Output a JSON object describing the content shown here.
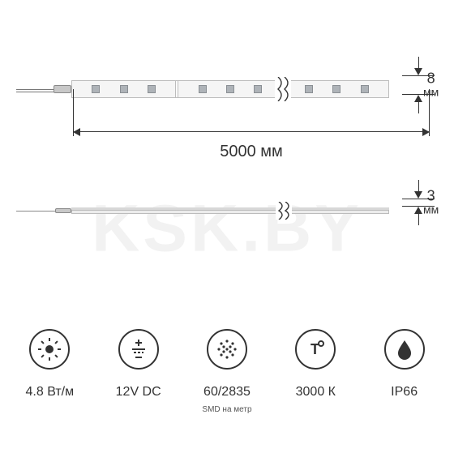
{
  "watermark": "KSK.BY",
  "dimensions": {
    "length": {
      "value": "5000",
      "unit": "мм"
    },
    "width": {
      "value": "8",
      "unit": "мм"
    },
    "thickness": {
      "value": "3",
      "unit": "мм"
    }
  },
  "strip": {
    "segments": 3,
    "leds_per_segment": 3,
    "strip_color": "#f5f5f5",
    "led_color": "#aeb3b8",
    "border_color": "#bcbcbc",
    "break_after_segment": 2
  },
  "colors": {
    "background": "#ffffff",
    "text": "#333333",
    "watermark": "#f2f2f2",
    "dimension_line": "#333333"
  },
  "typography": {
    "dimension_fontsize": 20,
    "spec_label_fontsize": 16,
    "sub_fontsize": 10
  },
  "specs": [
    {
      "id": "power",
      "icon": "sun",
      "label": "4.8 Вт/м",
      "sub": ""
    },
    {
      "id": "voltage",
      "icon": "dc",
      "label": "12V DC",
      "sub": ""
    },
    {
      "id": "leds",
      "icon": "dots",
      "label": "60/2835",
      "sub": "SMD на метр"
    },
    {
      "id": "cct",
      "icon": "temp",
      "label": "3000 К",
      "sub": ""
    },
    {
      "id": "ip",
      "icon": "droplet",
      "label": "IP66",
      "sub": ""
    }
  ]
}
